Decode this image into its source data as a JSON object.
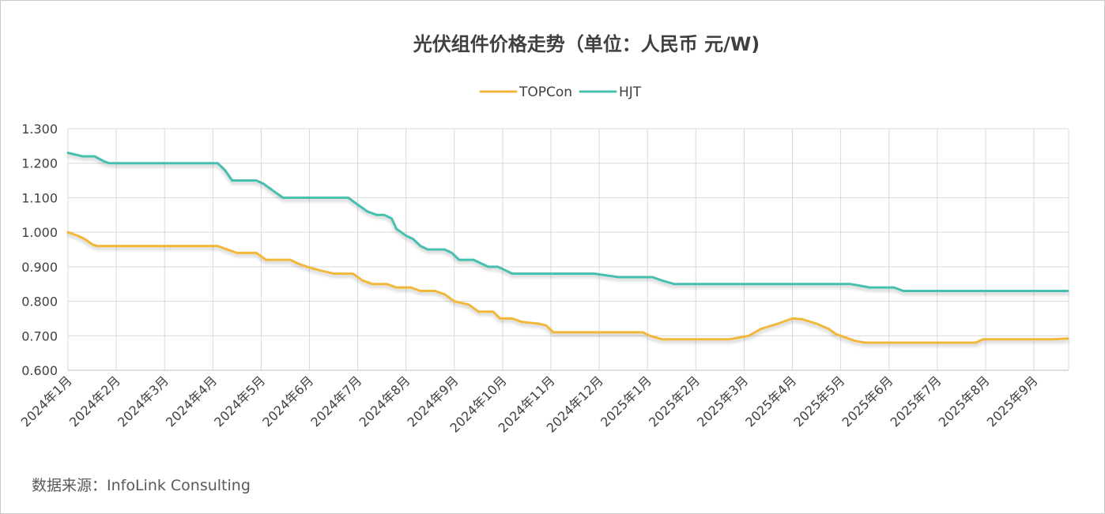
{
  "chart_data": {
    "type": "line",
    "title": "光伏组件价格走势（单位：人民币 元/W)",
    "xlabel": "",
    "ylabel": "",
    "ylim": [
      0.6,
      1.3
    ],
    "y_ticks": [
      "1.300",
      "1.200",
      "1.100",
      "1.000",
      "0.900",
      "0.800",
      "0.700",
      "0.600"
    ],
    "y_tick_values": [
      1.3,
      1.2,
      1.1,
      1.0,
      0.9,
      0.8,
      0.7,
      0.6
    ],
    "xlim": [
      0,
      20.75
    ],
    "categories": [
      "2024年1月",
      "2024年2月",
      "2024年3月",
      "2024年4月",
      "2024年5月",
      "2024年6月",
      "2024年7月",
      "2024年8月",
      "2024年9月",
      "2024年10月",
      "2024年11月",
      "2024年12月",
      "2025年1月",
      "2025年2月",
      "2025年3月",
      "2025年4月",
      "2025年5月",
      "2025年6月",
      "2025年7月",
      "2025年8月",
      "2025年9月"
    ],
    "grid": true,
    "legend_position": "top-center",
    "series": [
      {
        "name": "TOPCon",
        "color": "#f0b73b",
        "points": [
          [
            0,
            1.0
          ],
          [
            0.2,
            0.99
          ],
          [
            0.35,
            0.98
          ],
          [
            0.5,
            0.965
          ],
          [
            0.6,
            0.96
          ],
          [
            1,
            0.96
          ],
          [
            2,
            0.96
          ],
          [
            3,
            0.96
          ],
          [
            3.1,
            0.96
          ],
          [
            3.3,
            0.95
          ],
          [
            3.5,
            0.94
          ],
          [
            3.9,
            0.94
          ],
          [
            4.1,
            0.92
          ],
          [
            4.3,
            0.92
          ],
          [
            4.6,
            0.92
          ],
          [
            4.75,
            0.91
          ],
          [
            4.95,
            0.9
          ],
          [
            5.2,
            0.89
          ],
          [
            5.5,
            0.88
          ],
          [
            5.9,
            0.88
          ],
          [
            6.1,
            0.86
          ],
          [
            6.3,
            0.85
          ],
          [
            6.6,
            0.85
          ],
          [
            6.8,
            0.84
          ],
          [
            7.1,
            0.84
          ],
          [
            7.3,
            0.83
          ],
          [
            7.6,
            0.83
          ],
          [
            7.8,
            0.82
          ],
          [
            8.0,
            0.8
          ],
          [
            8.3,
            0.79
          ],
          [
            8.5,
            0.77
          ],
          [
            8.8,
            0.77
          ],
          [
            8.95,
            0.75
          ],
          [
            9.2,
            0.75
          ],
          [
            9.4,
            0.74
          ],
          [
            9.6,
            0.737
          ],
          [
            9.75,
            0.735
          ],
          [
            9.9,
            0.73
          ],
          [
            10.05,
            0.71
          ],
          [
            10.5,
            0.71
          ],
          [
            11,
            0.71
          ],
          [
            11.5,
            0.71
          ],
          [
            11.9,
            0.71
          ],
          [
            12.05,
            0.7
          ],
          [
            12.3,
            0.69
          ],
          [
            12.7,
            0.69
          ],
          [
            13,
            0.69
          ],
          [
            13.4,
            0.69
          ],
          [
            13.7,
            0.69
          ],
          [
            13.9,
            0.695
          ],
          [
            14.1,
            0.7
          ],
          [
            14.35,
            0.72
          ],
          [
            14.7,
            0.735
          ],
          [
            15.0,
            0.75
          ],
          [
            15.2,
            0.748
          ],
          [
            15.5,
            0.735
          ],
          [
            15.75,
            0.72
          ],
          [
            15.9,
            0.705
          ],
          [
            16.1,
            0.695
          ],
          [
            16.3,
            0.685
          ],
          [
            16.5,
            0.68
          ],
          [
            17,
            0.68
          ],
          [
            17.5,
            0.68
          ],
          [
            18.0,
            0.68
          ],
          [
            18.5,
            0.68
          ],
          [
            18.8,
            0.68
          ],
          [
            18.95,
            0.69
          ],
          [
            19.2,
            0.69
          ],
          [
            19.6,
            0.69
          ],
          [
            20,
            0.69
          ],
          [
            20.4,
            0.69
          ],
          [
            20.7,
            0.692
          ]
        ]
      },
      {
        "name": "HJT",
        "color": "#45bfae",
        "points": [
          [
            0,
            1.23
          ],
          [
            0.15,
            1.225
          ],
          [
            0.3,
            1.22
          ],
          [
            0.55,
            1.22
          ],
          [
            0.75,
            1.205
          ],
          [
            0.85,
            1.2
          ],
          [
            1,
            1.2
          ],
          [
            2,
            1.2
          ],
          [
            3,
            1.2
          ],
          [
            3.1,
            1.2
          ],
          [
            3.25,
            1.18
          ],
          [
            3.4,
            1.15
          ],
          [
            3.6,
            1.15
          ],
          [
            3.9,
            1.15
          ],
          [
            4.05,
            1.14
          ],
          [
            4.25,
            1.12
          ],
          [
            4.45,
            1.1
          ],
          [
            5,
            1.1
          ],
          [
            5.5,
            1.1
          ],
          [
            5.8,
            1.1
          ],
          [
            6.0,
            1.08
          ],
          [
            6.2,
            1.06
          ],
          [
            6.4,
            1.05
          ],
          [
            6.55,
            1.05
          ],
          [
            6.7,
            1.04
          ],
          [
            6.8,
            1.01
          ],
          [
            7.0,
            0.99
          ],
          [
            7.15,
            0.98
          ],
          [
            7.3,
            0.96
          ],
          [
            7.45,
            0.95
          ],
          [
            7.8,
            0.95
          ],
          [
            7.95,
            0.94
          ],
          [
            8.1,
            0.92
          ],
          [
            8.4,
            0.92
          ],
          [
            8.55,
            0.91
          ],
          [
            8.7,
            0.9
          ],
          [
            8.9,
            0.9
          ],
          [
            9.05,
            0.89
          ],
          [
            9.2,
            0.88
          ],
          [
            9.6,
            0.88
          ],
          [
            10,
            0.88
          ],
          [
            10.5,
            0.88
          ],
          [
            10.9,
            0.88
          ],
          [
            11.15,
            0.875
          ],
          [
            11.4,
            0.87
          ],
          [
            11.9,
            0.87
          ],
          [
            12.1,
            0.87
          ],
          [
            12.3,
            0.86
          ],
          [
            12.55,
            0.85
          ],
          [
            13,
            0.85
          ],
          [
            13.5,
            0.85
          ],
          [
            14,
            0.85
          ],
          [
            14.5,
            0.85
          ],
          [
            15,
            0.85
          ],
          [
            15.5,
            0.85
          ],
          [
            16,
            0.85
          ],
          [
            16.2,
            0.85
          ],
          [
            16.4,
            0.845
          ],
          [
            16.6,
            0.84
          ],
          [
            17.1,
            0.84
          ],
          [
            17.3,
            0.83
          ],
          [
            17.5,
            0.83
          ],
          [
            18,
            0.83
          ],
          [
            18.5,
            0.83
          ],
          [
            19,
            0.83
          ],
          [
            19.5,
            0.83
          ],
          [
            20,
            0.83
          ],
          [
            20.7,
            0.83
          ]
        ]
      }
    ]
  },
  "footer": {
    "source": "数据来源：InfoLink Consulting"
  }
}
